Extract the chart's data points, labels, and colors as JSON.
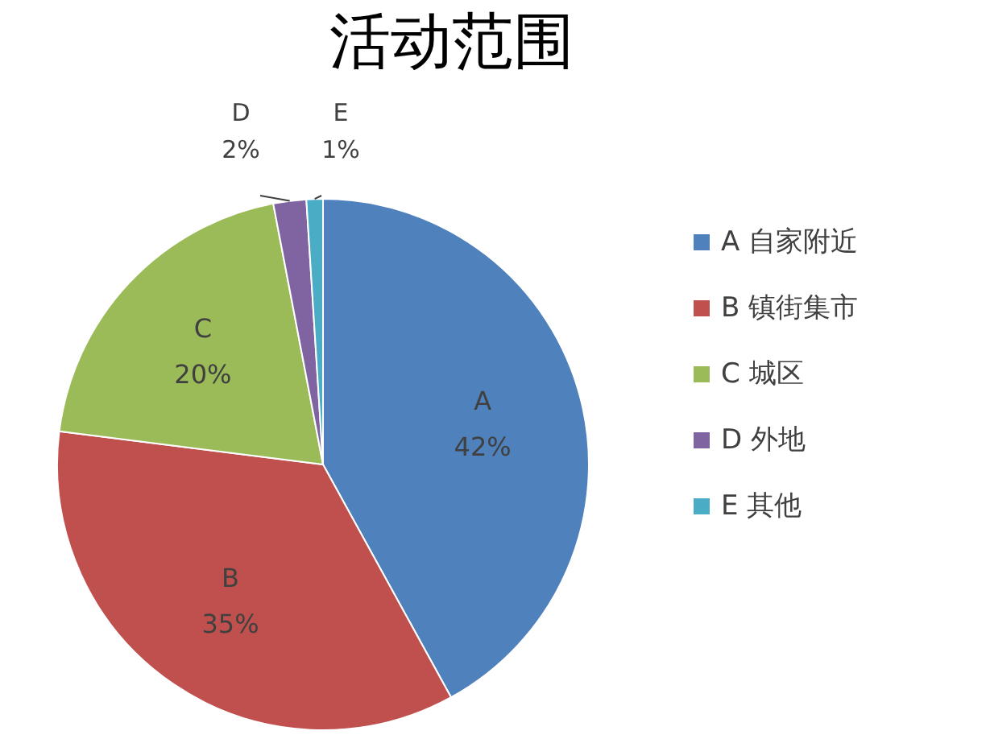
{
  "chart_data": {
    "type": "pie",
    "title": "活动范围",
    "categories": [
      "A 自家附近",
      "B 镇街集市",
      "C 城区",
      "D 外地",
      "E 其他"
    ],
    "values": [
      42,
      35,
      20,
      2,
      1
    ],
    "colors": [
      "#4f81bd",
      "#c0504d",
      "#9bbb59",
      "#8064a2",
      "#4bacc6"
    ],
    "value_labels": [
      "A\n42%",
      "B\n35%",
      "C\n20%",
      "D\n2%",
      "E\n1%"
    ],
    "legend": "right"
  }
}
